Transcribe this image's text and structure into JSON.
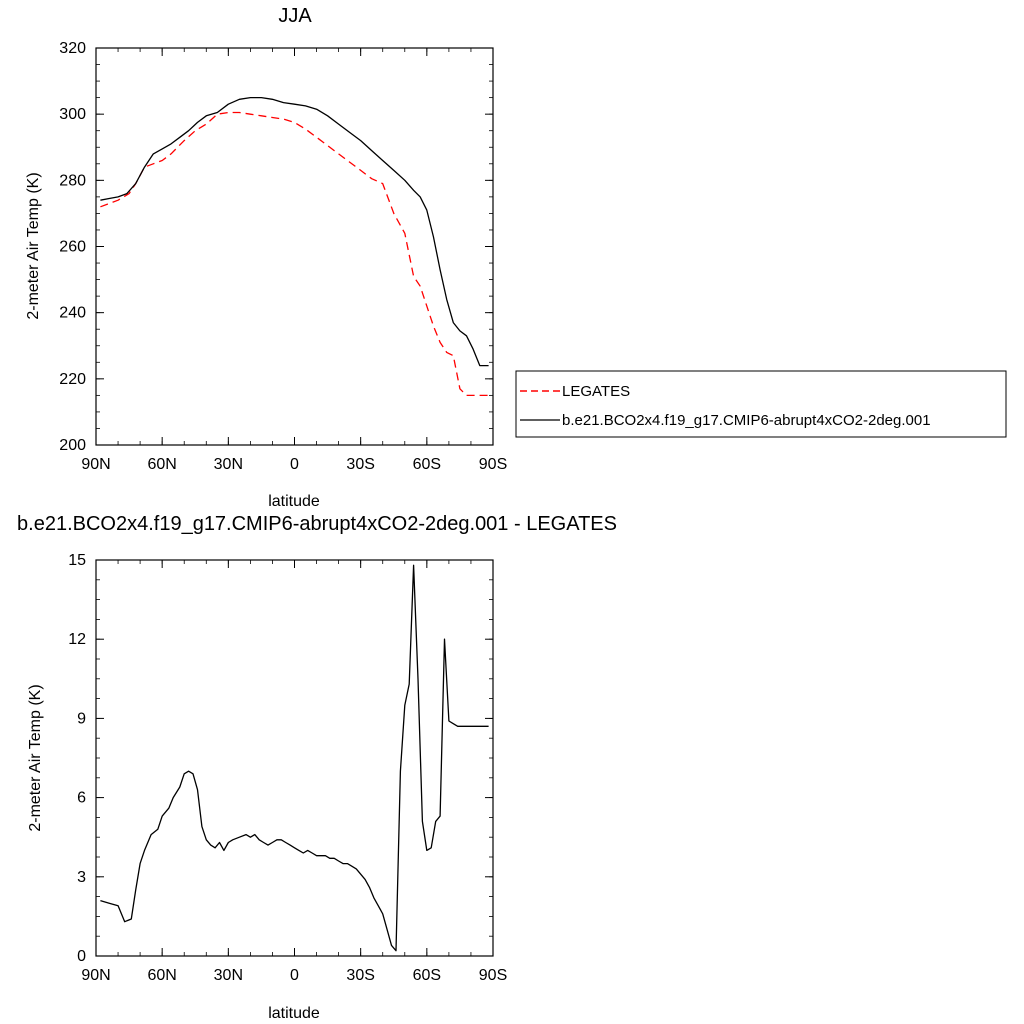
{
  "chart_data": [
    {
      "type": "line",
      "title": "JJA",
      "xlabel": "latitude",
      "ylabel": "2-meter Air Temp (K)",
      "xlim": [
        90,
        -90
      ],
      "ylim": [
        200,
        320
      ],
      "x_tick_values": [
        90,
        60,
        30,
        0,
        -30,
        -60,
        -90
      ],
      "x_tick_labels": [
        "90N",
        "60N",
        "30N",
        "0",
        "30S",
        "60S",
        "90S"
      ],
      "y_ticks": [
        200,
        220,
        240,
        260,
        280,
        300,
        320
      ],
      "grid": false,
      "legend": {
        "placement": "right",
        "entries": [
          "LEGATES",
          "b.e21.BCO2x4.f19_g17.CMIP6-abrupt4xCO2-2deg.001"
        ]
      },
      "series": [
        {
          "name": "LEGATES",
          "color": "#ff0000",
          "dash": "dashed",
          "x": [
            88,
            80,
            75,
            72,
            68,
            64,
            60,
            56,
            50,
            45,
            40,
            35,
            30,
            25,
            20,
            15,
            10,
            5,
            0,
            -5,
            -10,
            -15,
            -20,
            -25,
            -30,
            -35,
            -40,
            -45,
            -50,
            -54,
            -57,
            -60,
            -63,
            -66,
            -69,
            -72,
            -75,
            -78,
            -81,
            -84,
            -86,
            -88
          ],
          "y": [
            272,
            274,
            276,
            279,
            284,
            285,
            286,
            288,
            292,
            295,
            297,
            300,
            300.5,
            300.5,
            300,
            299.5,
            299,
            298.5,
            297.5,
            295.5,
            293,
            290.5,
            288,
            285.5,
            283,
            280.5,
            279,
            270,
            264,
            251,
            248,
            242,
            236,
            231,
            228,
            227,
            217,
            215,
            215,
            215,
            215,
            215
          ]
        },
        {
          "name": "b.e21.BCO2x4.f19_g17.CMIP6-abrupt4xCO2-2deg.001",
          "color": "#000000",
          "dash": "solid",
          "x": [
            88,
            84,
            80,
            76,
            72,
            68,
            64,
            60,
            56,
            52,
            48,
            44,
            40,
            35,
            30,
            25,
            20,
            15,
            10,
            5,
            0,
            -5,
            -10,
            -15,
            -20,
            -25,
            -30,
            -35,
            -40,
            -45,
            -50,
            -54,
            -57,
            -60,
            -63,
            -66,
            -69,
            -72,
            -75,
            -78,
            -81,
            -84,
            -86,
            -88
          ],
          "y": [
            274,
            274.5,
            275,
            276,
            279,
            284,
            288,
            289.5,
            291,
            293,
            295,
            297.5,
            299.5,
            300.5,
            303,
            304.5,
            305,
            305,
            304.5,
            303.5,
            303,
            302.5,
            301.5,
            299.5,
            297,
            294.5,
            292,
            289,
            286,
            283,
            280,
            277,
            275,
            271,
            263,
            253,
            244,
            237,
            234.5,
            233,
            229,
            224,
            224,
            224
          ]
        }
      ]
    },
    {
      "type": "line",
      "title": "b.e21.BCO2x4.f19_g17.CMIP6-abrupt4xCO2-2deg.001 - LEGATES",
      "xlabel": "latitude",
      "ylabel": "2-meter Air Temp (K)",
      "xlim": [
        90,
        -90
      ],
      "ylim": [
        0,
        15
      ],
      "x_tick_values": [
        90,
        60,
        30,
        0,
        -30,
        -60,
        -90
      ],
      "x_tick_labels": [
        "90N",
        "60N",
        "30N",
        "0",
        "30S",
        "60S",
        "90S"
      ],
      "y_ticks": [
        0,
        3,
        6,
        9,
        12,
        15
      ],
      "grid": false,
      "series": [
        {
          "color": "#000000",
          "dash": "solid",
          "x": [
            88,
            84,
            80,
            77,
            74,
            72,
            70,
            68,
            65,
            62,
            60,
            57,
            55,
            52,
            50,
            48,
            46,
            44,
            42,
            40,
            38,
            36,
            34,
            32,
            30,
            28,
            25,
            22,
            20,
            18,
            16,
            14,
            12,
            10,
            8,
            6,
            4,
            2,
            0,
            -2,
            -4,
            -6,
            -8,
            -10,
            -12,
            -14,
            -16,
            -18,
            -20,
            -22,
            -24,
            -26,
            -28,
            -30,
            -32,
            -34,
            -36,
            -38,
            -40,
            -42,
            -44,
            -46,
            -48,
            -50,
            -52,
            -54,
            -56,
            -58,
            -60,
            -62,
            -64,
            -66,
            -68,
            -70,
            -72,
            -74,
            -76,
            -78,
            -80,
            -82,
            -84,
            -86,
            -88
          ],
          "y": [
            2.1,
            2.0,
            1.9,
            1.3,
            1.4,
            2.5,
            3.5,
            4.0,
            4.6,
            4.8,
            5.3,
            5.6,
            6.0,
            6.4,
            6.9,
            7.0,
            6.9,
            6.3,
            4.9,
            4.4,
            4.2,
            4.1,
            4.3,
            4.0,
            4.3,
            4.4,
            4.5,
            4.6,
            4.5,
            4.6,
            4.4,
            4.3,
            4.2,
            4.3,
            4.4,
            4.4,
            4.3,
            4.2,
            4.1,
            4.0,
            3.9,
            4.0,
            3.9,
            3.8,
            3.8,
            3.8,
            3.7,
            3.7,
            3.6,
            3.5,
            3.5,
            3.4,
            3.3,
            3.1,
            2.9,
            2.6,
            2.2,
            1.9,
            1.6,
            1.0,
            0.4,
            0.2,
            7.0,
            9.5,
            10.3,
            14.8,
            10.5,
            5.1,
            4.0,
            4.1,
            5.1,
            5.3,
            12.0,
            8.9,
            8.8,
            8.7,
            8.7,
            8.7,
            8.7,
            8.7,
            8.7,
            8.7,
            8.7
          ]
        }
      ]
    }
  ]
}
